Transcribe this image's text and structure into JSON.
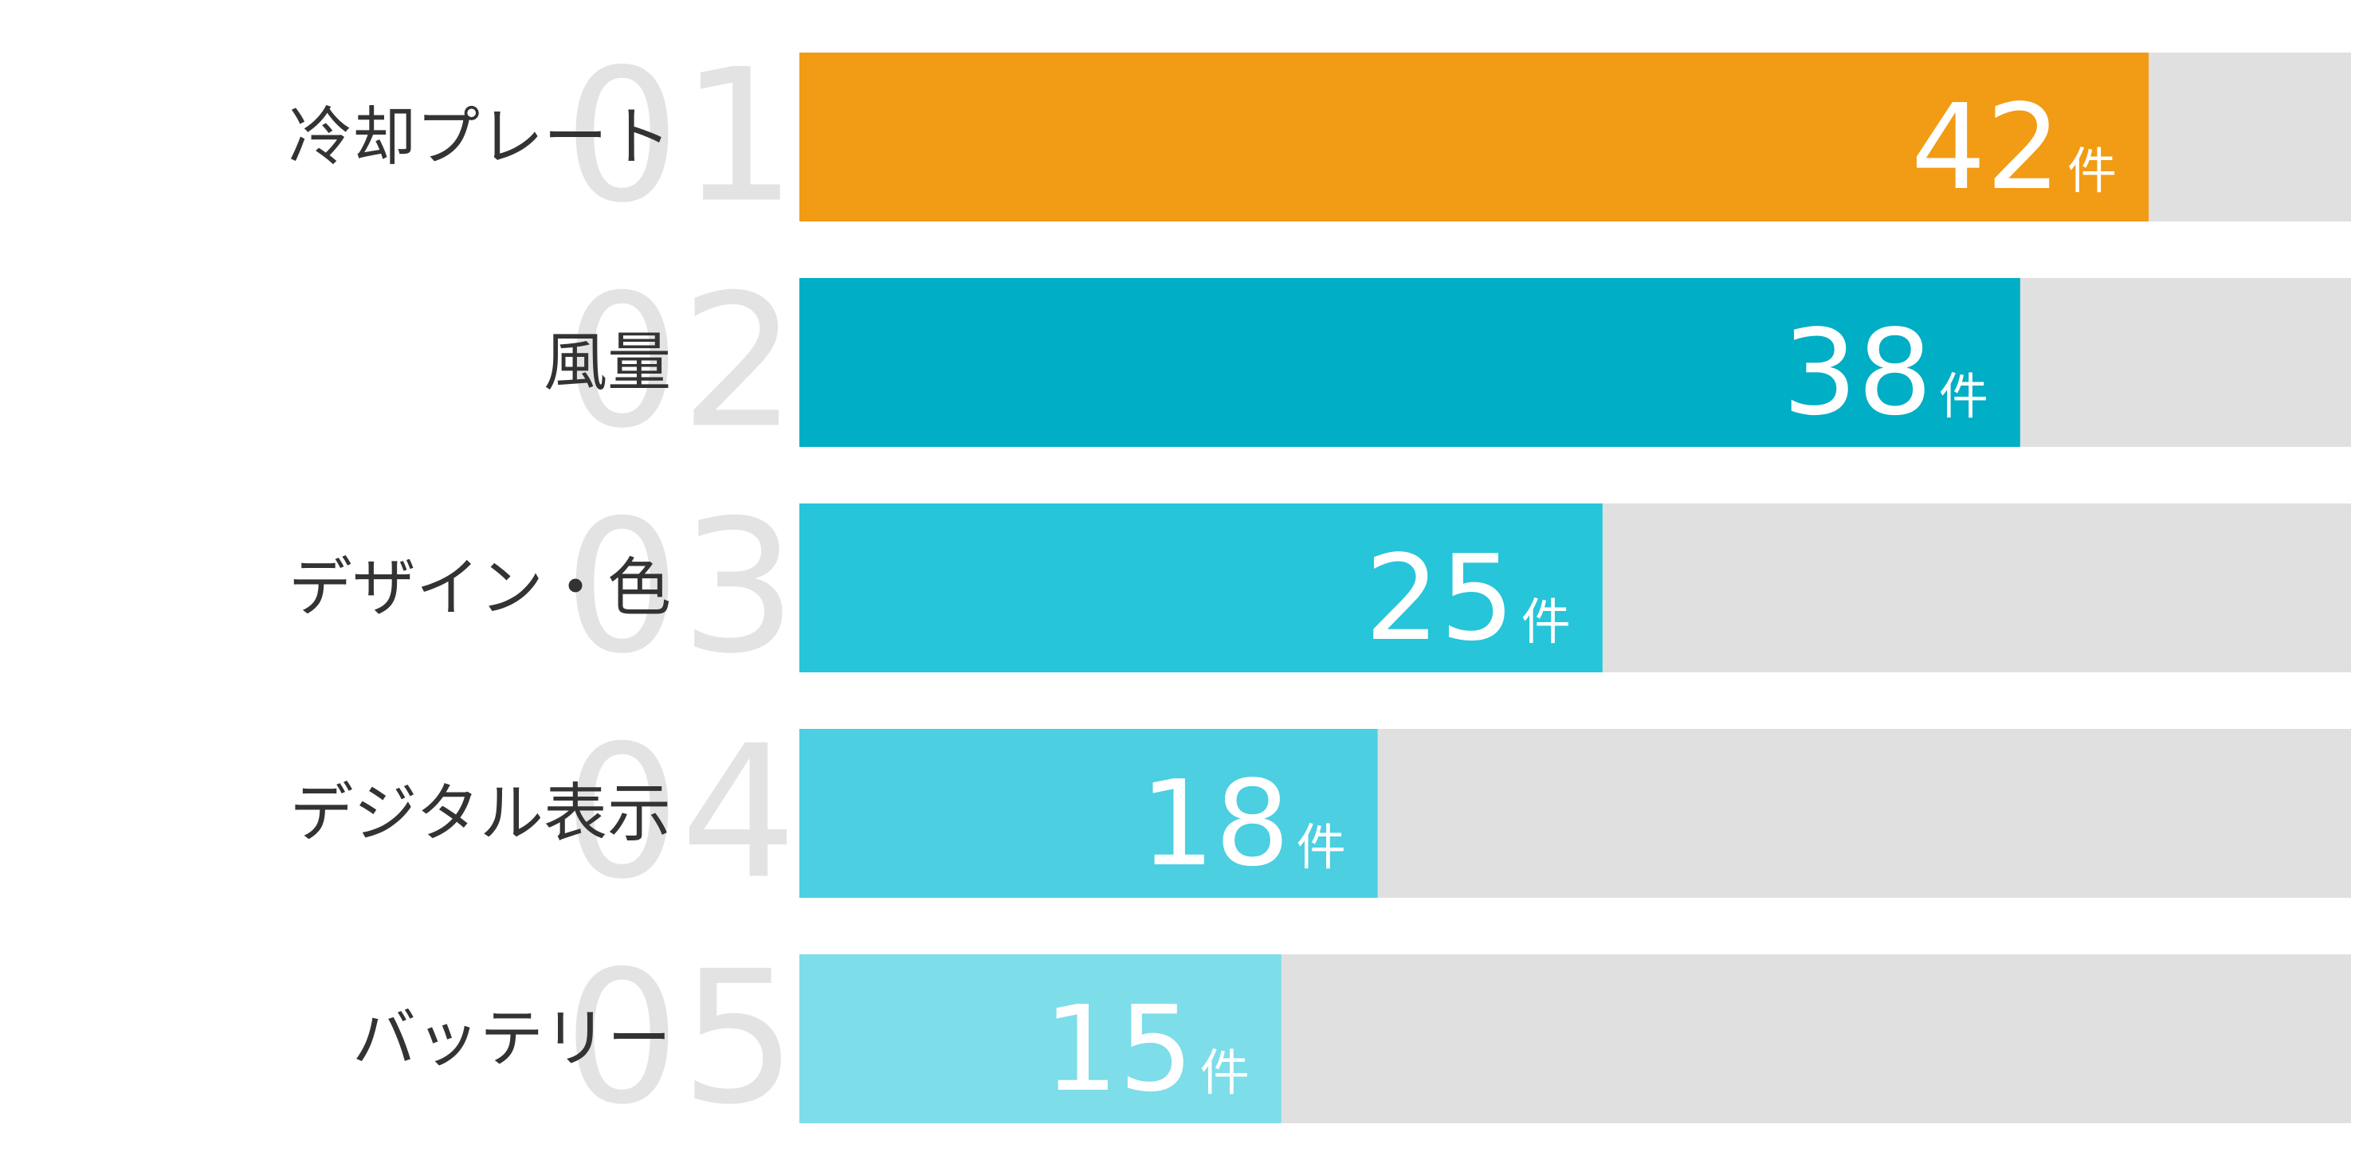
{
  "chart_data": {
    "type": "bar",
    "orientation": "horizontal",
    "categories": [
      "冷却プレート",
      "風量",
      "デザイン・色",
      "デジタル表示",
      "バッテリー"
    ],
    "ranks": [
      "01",
      "02",
      "03",
      "04",
      "05"
    ],
    "values": [
      42,
      38,
      25,
      18,
      15
    ],
    "unit": "件",
    "xlim": [
      0,
      48.3
    ],
    "colors": [
      "#f29b14",
      "#00aec5",
      "#26c5d9",
      "#4bcfe1",
      "#7ddde9"
    ],
    "track_color": "#e0e0e0",
    "grid": false,
    "legend": "none"
  }
}
